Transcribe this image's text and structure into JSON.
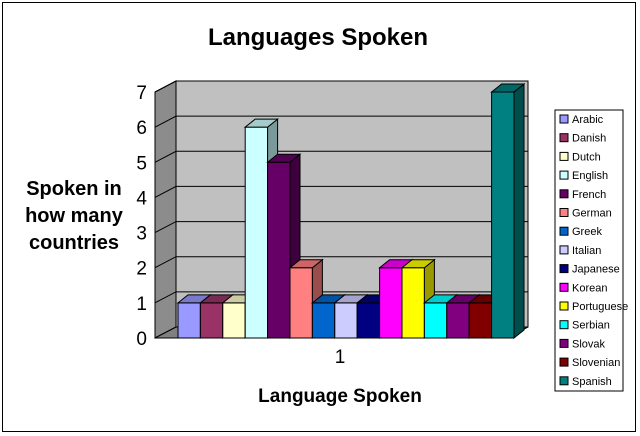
{
  "chart_data": {
    "type": "bar",
    "title": "Languages Spoken",
    "xlabel": "Language Spoken",
    "ylabel": [
      "Spoken in",
      "how many",
      "countries"
    ],
    "categories": [
      "1"
    ],
    "ylim": [
      0,
      7
    ],
    "yticks": [
      "0",
      "1",
      "2",
      "3",
      "4",
      "5",
      "6",
      "7"
    ],
    "grid": true,
    "legend": "right",
    "series": [
      {
        "name": "Arabic",
        "values": [
          1
        ],
        "color": "#9999ff"
      },
      {
        "name": "Danish",
        "values": [
          1
        ],
        "color": "#993366"
      },
      {
        "name": "Dutch",
        "values": [
          1
        ],
        "color": "#ffffcc"
      },
      {
        "name": "English",
        "values": [
          6
        ],
        "color": "#ccffff"
      },
      {
        "name": "French",
        "values": [
          5
        ],
        "color": "#660066"
      },
      {
        "name": "German",
        "values": [
          2
        ],
        "color": "#ff8080"
      },
      {
        "name": "Greek",
        "values": [
          1
        ],
        "color": "#0066cc"
      },
      {
        "name": "Italian",
        "values": [
          1
        ],
        "color": "#ccccff"
      },
      {
        "name": "Japanese",
        "values": [
          1
        ],
        "color": "#000080"
      },
      {
        "name": "Korean",
        "values": [
          2
        ],
        "color": "#ff00ff"
      },
      {
        "name": "Portuguese",
        "values": [
          2
        ],
        "color": "#ffff00"
      },
      {
        "name": "Serbian",
        "values": [
          1
        ],
        "color": "#00ffff"
      },
      {
        "name": "Slovak",
        "values": [
          1
        ],
        "color": "#800080"
      },
      {
        "name": "Slovenian",
        "values": [
          1
        ],
        "color": "#800000"
      },
      {
        "name": "Spanish",
        "values": [
          7
        ],
        "color": "#008080"
      }
    ]
  }
}
